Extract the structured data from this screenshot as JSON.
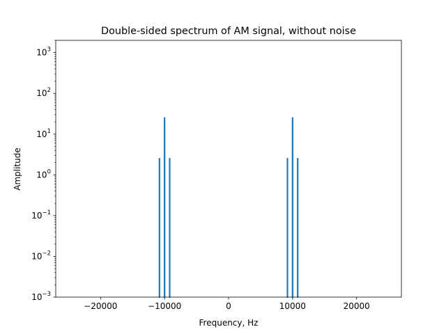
{
  "chart_data": {
    "type": "line",
    "title": "Double-sided spectrum of AM signal, without noise",
    "xlabel": "Frequency, Hz",
    "ylabel": "Amplitude",
    "xlim": [
      -27000,
      27000
    ],
    "ylim": [
      0.001,
      2000
    ],
    "yscale": "log",
    "grid": false,
    "x_ticks": [
      {
        "value": -20000,
        "label": "−20000"
      },
      {
        "value": -10000,
        "label": "−10000"
      },
      {
        "value": 0,
        "label": "0"
      },
      {
        "value": 10000,
        "label": "10000"
      },
      {
        "value": 20000,
        "label": "20000"
      }
    ],
    "y_ticks": [
      {
        "value": 0.001,
        "base": "10",
        "exp": "−3"
      },
      {
        "value": 0.01,
        "base": "10",
        "exp": "−2"
      },
      {
        "value": 0.1,
        "base": "10",
        "exp": "−1"
      },
      {
        "value": 1,
        "base": "10",
        "exp": "0"
      },
      {
        "value": 10,
        "base": "10",
        "exp": "1"
      },
      {
        "value": 100,
        "base": "10",
        "exp": "2"
      },
      {
        "value": 1000,
        "base": "10",
        "exp": "3"
      }
    ],
    "series": [
      {
        "color": "#1f77b4",
        "points": [
          {
            "x": -10800,
            "y": 2.5
          },
          {
            "x": -10000,
            "y": 25
          },
          {
            "x": -9200,
            "y": 2.5
          },
          {
            "x": 9200,
            "y": 2.5
          },
          {
            "x": 10000,
            "y": 25
          },
          {
            "x": 10800,
            "y": 2.5
          }
        ]
      }
    ]
  }
}
